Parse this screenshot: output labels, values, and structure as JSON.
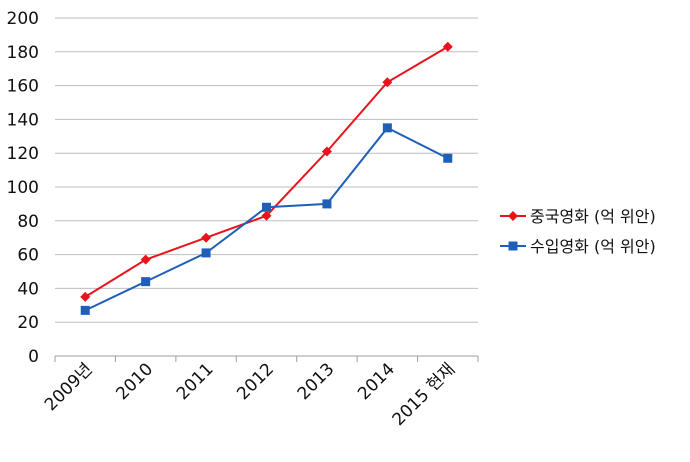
{
  "chart_data": {
    "type": "line",
    "categories": [
      "2009년",
      "2010",
      "2011",
      "2012",
      "2013",
      "2014",
      "2015 현재"
    ],
    "ylim": [
      0,
      200
    ],
    "yticks": [
      0,
      20,
      40,
      60,
      80,
      100,
      120,
      140,
      160,
      180,
      200
    ],
    "grid": true,
    "legend_position": "right",
    "series": [
      {
        "name": "중국영화 (억 위안)",
        "values": [
          35,
          57,
          70,
          83,
          121,
          162,
          183
        ],
        "color": "#e8141c",
        "marker": "diamond"
      },
      {
        "name": "수입영화 (억 위안)",
        "values": [
          27,
          44,
          61,
          88,
          90,
          135,
          117
        ],
        "color": "#1f5fb8",
        "marker": "square"
      }
    ]
  }
}
